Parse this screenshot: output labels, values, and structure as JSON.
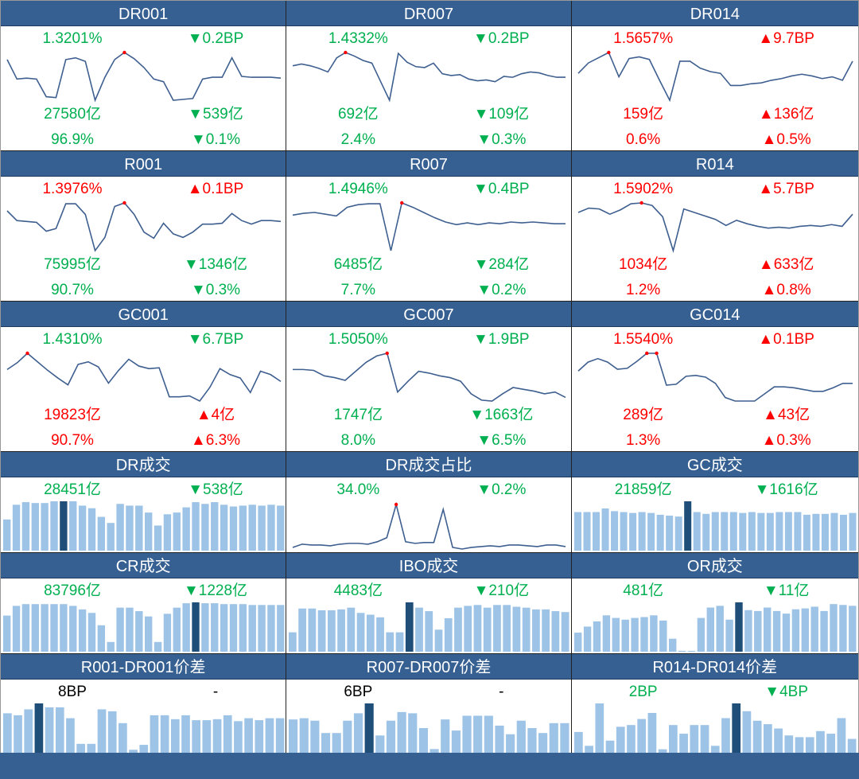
{
  "colors": {
    "header": "#366092",
    "up": "#ff0000",
    "down": "#00b050",
    "line": "#3e5f8f",
    "bar": "#9dc3e6",
    "bar_highlight": "#1f4e79"
  },
  "rows": [
    [
      {
        "type": "line",
        "title": "DR001",
        "rate": "1.3201%",
        "rate_chg": "▼0.2BP",
        "vol": "27580亿",
        "vol_chg": "▼539亿",
        "share": "96.9%",
        "share_chg": "▼0.1%",
        "dir": [
          "dn",
          "dn",
          "dn",
          "dn",
          "dn",
          "dn"
        ],
        "values": [
          54,
          32,
          33,
          32,
          12,
          11,
          54,
          56,
          52,
          8,
          34,
          54,
          62,
          55,
          45,
          32,
          29,
          8,
          9,
          10,
          32,
          34,
          34,
          56,
          35,
          34,
          34,
          34,
          33
        ]
      },
      {
        "type": "line",
        "title": "DR007",
        "rate": "1.4332%",
        "rate_chg": "▼0.2BP",
        "vol": "692亿",
        "vol_chg": "▼109亿",
        "share": "2.4%",
        "share_chg": "▼0.3%",
        "dir": [
          "dn",
          "dn",
          "dn",
          "dn",
          "dn",
          "dn"
        ],
        "values": [
          47,
          49,
          47,
          44,
          40,
          56,
          62,
          58,
          53,
          50,
          29,
          8,
          61,
          51,
          46,
          45,
          50,
          38,
          36,
          37,
          32,
          30,
          31,
          29,
          35,
          34,
          38,
          40,
          39,
          36,
          34,
          34
        ]
      },
      {
        "type": "line",
        "title": "DR014",
        "rate": "1.5657%",
        "rate_chg": "▲9.7BP",
        "vol": "159亿",
        "vol_chg": "▲136亿",
        "share": "0.6%",
        "share_chg": "▲0.5%",
        "dir": [
          "up",
          "up",
          "up",
          "up",
          "up",
          "up"
        ],
        "values": [
          38,
          50,
          56,
          62,
          34,
          55,
          57,
          54,
          30,
          7,
          52,
          52,
          44,
          40,
          38,
          24,
          24,
          26,
          27,
          30,
          32,
          35,
          37,
          35,
          32,
          34,
          30,
          52
        ]
      }
    ],
    [
      {
        "type": "line",
        "title": "R001",
        "rate": "1.3976%",
        "rate_chg": "▲0.1BP",
        "vol": "75995亿",
        "vol_chg": "▼1346亿",
        "share": "90.7%",
        "share_chg": "▼0.3%",
        "dir": [
          "up",
          "up",
          "dn",
          "dn",
          "dn",
          "dn"
        ],
        "values": [
          53,
          42,
          41,
          40,
          30,
          33,
          61,
          61,
          49,
          8,
          23,
          58,
          62,
          49,
          29,
          22,
          39,
          27,
          23,
          29,
          38,
          38,
          39,
          50,
          42,
          38,
          42,
          42,
          41
        ]
      },
      {
        "type": "line",
        "title": "R007",
        "rate": "1.4946%",
        "rate_chg": "▼0.4BP",
        "vol": "6485亿",
        "vol_chg": "▼284亿",
        "share": "7.7%",
        "share_chg": "▼0.2%",
        "dir": [
          "dn",
          "dn",
          "dn",
          "dn",
          "dn",
          "dn"
        ],
        "values": [
          48,
          50,
          51,
          49,
          47,
          57,
          60,
          61,
          61,
          7,
          62,
          57,
          51,
          45,
          40,
          37,
          39,
          37,
          39,
          38,
          40,
          39,
          40,
          39,
          38,
          38
        ]
      },
      {
        "type": "line",
        "title": "R014",
        "rate": "1.5902%",
        "rate_chg": "▲5.7BP",
        "vol": "1034亿",
        "vol_chg": "▲633亿",
        "share": "1.2%",
        "share_chg": "▲0.8%",
        "dir": [
          "up",
          "up",
          "up",
          "up",
          "up",
          "up"
        ],
        "values": [
          51,
          56,
          55,
          49,
          54,
          61,
          62,
          59,
          46,
          7,
          55,
          51,
          47,
          43,
          36,
          42,
          38,
          35,
          33,
          34,
          33,
          35,
          36,
          35,
          37,
          35,
          49
        ]
      }
    ],
    [
      {
        "type": "line",
        "title": "GC001",
        "rate": "1.4310%",
        "rate_chg": "▼6.7BP",
        "vol": "19823亿",
        "vol_chg": "▲4亿",
        "share": "90.7%",
        "share_chg": "▲6.3%",
        "dir": [
          "dn",
          "dn",
          "up",
          "up",
          "up",
          "up"
        ],
        "values": [
          37,
          45,
          56,
          46,
          36,
          27,
          19,
          43,
          46,
          40,
          21,
          36,
          49,
          41,
          38,
          39,
          5,
          5,
          6,
          0,
          16,
          38,
          31,
          27,
          10,
          35,
          31,
          23
        ]
      },
      {
        "type": "line",
        "title": "GC007",
        "rate": "1.5050%",
        "rate_chg": "▼1.9BP",
        "vol": "1747亿",
        "vol_chg": "▼1663亿",
        "share": "8.0%",
        "share_chg": "▼6.5%",
        "dir": [
          "dn",
          "dn",
          "dn",
          "dn",
          "dn",
          "dn"
        ],
        "values": [
          38,
          38,
          37,
          31,
          29,
          26,
          36,
          46,
          53,
          56,
          13,
          25,
          36,
          34,
          31,
          29,
          25,
          11,
          4,
          3,
          11,
          18,
          16,
          14,
          11,
          13,
          7
        ]
      },
      {
        "type": "line",
        "title": "GC014",
        "rate": "1.5540%",
        "rate_chg": "▲0.1BP",
        "vol": "289亿",
        "vol_chg": "▲43亿",
        "share": "1.3%",
        "share_chg": "▲0.3%",
        "dir": [
          "up",
          "up",
          "up",
          "up",
          "up",
          "up"
        ],
        "values": [
          34,
          44,
          48,
          44,
          36,
          37,
          45,
          54,
          54,
          18,
          19,
          28,
          29,
          27,
          20,
          4,
          0,
          0,
          0,
          8,
          16,
          16,
          15,
          13,
          11,
          11,
          15,
          20,
          20
        ]
      }
    ],
    [
      {
        "type": "bar",
        "title": "DR成交",
        "a": "28451亿",
        "b": "▼538亿",
        "dir": [
          "dn",
          "dn"
        ],
        "highlight": 6,
        "values": [
          36,
          53,
          56,
          55,
          55,
          57,
          57,
          57,
          52,
          49,
          39,
          32,
          54,
          52,
          52,
          44,
          29,
          42,
          44,
          50,
          56,
          54,
          56,
          53,
          51,
          52,
          53,
          52,
          53,
          52
        ]
      },
      {
        "type": "line2",
        "title": "DR成交占比",
        "a": "34.0%",
        "b": "▼0.2%",
        "dir": [
          "dn",
          "dn"
        ],
        "values": [
          2,
          6,
          5,
          5,
          4,
          6,
          7,
          7,
          6,
          9,
          14,
          55,
          9,
          7,
          8,
          8,
          49,
          2,
          0,
          2,
          3,
          4,
          3,
          5,
          5,
          4,
          3,
          5,
          5,
          3
        ]
      },
      {
        "type": "bar",
        "title": "GC成交",
        "a": "21859亿",
        "b": "▼1616亿",
        "dir": [
          "dn",
          "dn"
        ],
        "highlight": 12,
        "values": [
          43,
          43,
          43,
          47,
          44,
          43,
          42,
          43,
          42,
          40,
          39,
          38,
          55,
          43,
          41,
          43,
          43,
          43,
          42,
          43,
          42,
          42,
          43,
          43,
          43,
          40,
          41,
          41,
          42,
          40,
          42
        ]
      }
    ],
    [
      {
        "type": "bar",
        "title": "CR成交",
        "a": "83796亿",
        "b": "▼1228亿",
        "dir": [
          "dn",
          "dn"
        ],
        "highlight": 20,
        "values": [
          41,
          52,
          54,
          54,
          54,
          54,
          54,
          52,
          48,
          44,
          30,
          11,
          50,
          50,
          46,
          40,
          11,
          43,
          50,
          55,
          56,
          55,
          55,
          54,
          54,
          54,
          53,
          53,
          53,
          53
        ]
      },
      {
        "type": "bar",
        "title": "IBO成交",
        "a": "4483亿",
        "b": "▼210亿",
        "dir": [
          "dn",
          "dn"
        ],
        "highlight": 12,
        "values": [
          22,
          49,
          49,
          47,
          47,
          48,
          50,
          44,
          42,
          39,
          22,
          22,
          56,
          50,
          46,
          25,
          38,
          50,
          52,
          53,
          50,
          53,
          53,
          51,
          50,
          48,
          48,
          46,
          45
        ]
      },
      {
        "type": "bar",
        "title": "OR成交",
        "a": "481亿",
        "b": "▼11亿",
        "dir": [
          "dn",
          "dn"
        ],
        "highlight": 17,
        "values": [
          22,
          29,
          35,
          42,
          39,
          37,
          39,
          40,
          42,
          36,
          15,
          1,
          0,
          39,
          51,
          53,
          37,
          57,
          48,
          47,
          51,
          47,
          44,
          49,
          50,
          52,
          47,
          55,
          54,
          53
        ]
      }
    ],
    [
      {
        "type": "bar",
        "title": "R001-DR001价差",
        "a": "8BP",
        "b": "-",
        "dir": [
          "bk",
          "bk"
        ],
        "highlight": 3,
        "values": [
          40,
          38,
          44,
          50,
          46,
          46,
          35,
          9,
          9,
          44,
          42,
          30,
          3,
          8,
          38,
          38,
          34,
          38,
          33,
          33,
          34,
          38,
          32,
          35,
          33,
          35,
          35
        ]
      },
      {
        "type": "bar",
        "title": "R007-DR007价差",
        "a": "6BP",
        "b": "-",
        "dir": [
          "bk",
          "bk"
        ],
        "highlight": 7,
        "values": [
          27,
          28,
          26,
          16,
          16,
          26,
          32,
          40,
          14,
          26,
          33,
          32,
          20,
          3,
          27,
          18,
          30,
          30,
          30,
          22,
          15,
          26,
          20,
          16,
          24,
          24
        ]
      },
      {
        "type": "bar",
        "title": "R014-DR014价差",
        "a": "2BP",
        "b": "▼4BP",
        "dir": [
          "dn",
          "dn"
        ],
        "highlight": 15,
        "values": [
          24,
          8,
          57,
          14,
          30,
          32,
          39,
          46,
          4,
          32,
          22,
          32,
          32,
          8,
          40,
          57,
          48,
          37,
          33,
          28,
          20,
          18,
          18,
          25,
          22,
          40,
          16
        ]
      }
    ]
  ]
}
